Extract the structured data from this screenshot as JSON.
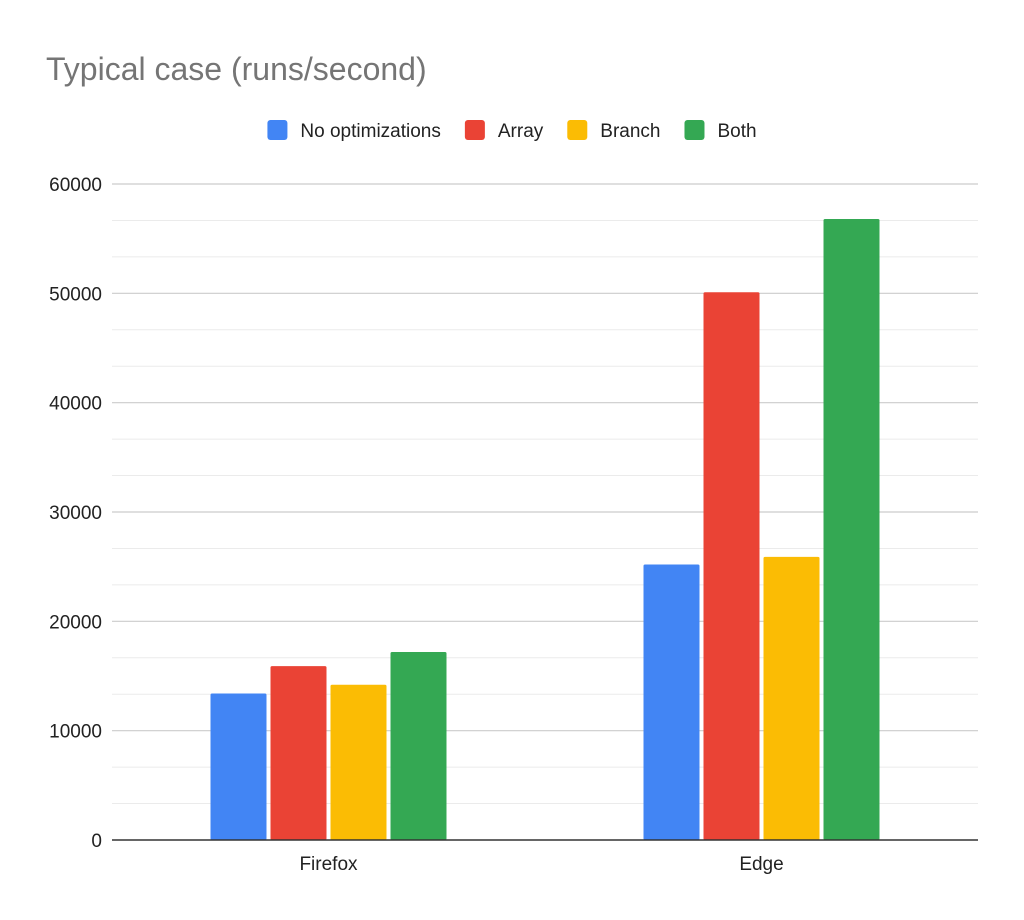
{
  "chart_data": {
    "type": "bar",
    "title": "Typical case (runs/second)",
    "xlabel": "",
    "ylabel": "",
    "categories": [
      "Firefox",
      "Edge"
    ],
    "series": [
      {
        "name": "No optimizations",
        "color": "#4285f4",
        "values": [
          13400,
          25200
        ]
      },
      {
        "name": "Array",
        "color": "#ea4335",
        "values": [
          15900,
          50100
        ]
      },
      {
        "name": "Branch",
        "color": "#fbbc04",
        "values": [
          14200,
          25900
        ]
      },
      {
        "name": "Both",
        "color": "#34a853",
        "values": [
          17200,
          56800
        ]
      }
    ],
    "ylim": [
      0,
      60000
    ],
    "yticks": [
      "0",
      "10000",
      "20000",
      "30000",
      "40000",
      "50000",
      "60000"
    ],
    "grid": true,
    "minor_grid": true,
    "legend_position": "top"
  }
}
